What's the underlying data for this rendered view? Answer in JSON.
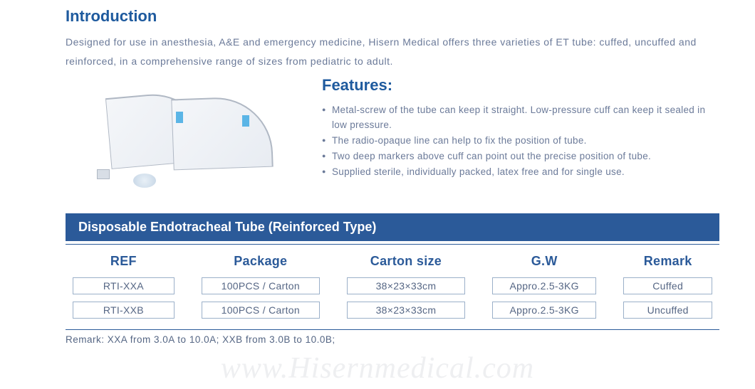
{
  "intro": {
    "title": "Introduction",
    "text": "Designed for use in anesthesia, A&E and emergency medicine, Hisern Medical offers three varieties of ET tube: cuffed, uncuffed and reinforced, in a comprehensive range of sizes from pediatric to adult."
  },
  "features": {
    "title": "Features:",
    "items": [
      "Metal-screw of the tube can keep it straight. Low-pressure cuff can keep it sealed in low pressure.",
      "The radio-opaque line can help to fix the position of tube.",
      "Two deep markers above cuff can point out the precise position of tube.",
      "Supplied sterile, individually packed, latex free and for single use."
    ]
  },
  "table": {
    "title": "Disposable Endotracheal Tube (Reinforced Type)",
    "headers": {
      "ref": "REF",
      "package": "Package",
      "carton": "Carton  size",
      "gw": "G.W",
      "remark": "Remark"
    },
    "rows": [
      {
        "ref": "RTI-XXA",
        "package": "100PCS / Carton",
        "carton": "38×23×33cm",
        "gw": "Appro.2.5-3KG",
        "remark": "Cuffed"
      },
      {
        "ref": "RTI-XXB",
        "package": "100PCS / Carton",
        "carton": "38×23×33cm",
        "gw": "Appro.2.5-3KG",
        "remark": "Uncuffed"
      }
    ],
    "note": "Remark: XXA from 3.0A to 10.0A; XXB from 3.0B to 10.0B;"
  },
  "watermark": "www.Hisernmedical.com",
  "colors": {
    "title_blue": "#1e5a9e",
    "bar_blue": "#2b5a99",
    "body_text": "#6b7a99",
    "cell_border": "#9bb0c9"
  }
}
